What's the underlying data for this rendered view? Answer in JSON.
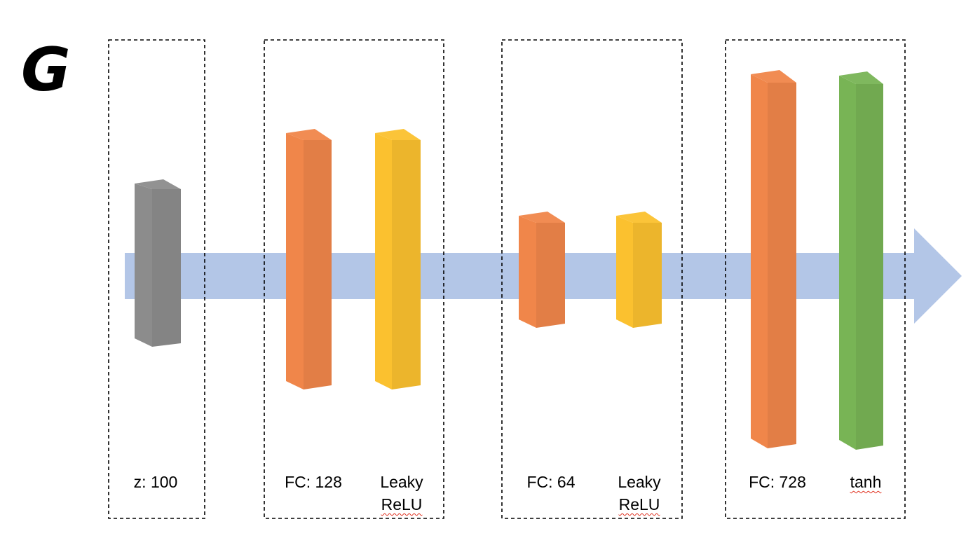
{
  "title": "G",
  "colors": {
    "arrow": "#b3c6e7",
    "input_block": "#8c8c8c",
    "fc_block": "#f0864a",
    "leaky_relu_block": "#fbc12f",
    "tanh_block": "#78b455",
    "group_border": "#000000"
  },
  "groups": [
    {
      "layers": [
        {
          "type": "input",
          "label_lines": [
            "z: 100"
          ],
          "color": "#8c8c8c"
        }
      ]
    },
    {
      "layers": [
        {
          "type": "fc",
          "label_lines": [
            "FC: 128"
          ],
          "color": "#f0864a"
        },
        {
          "type": "activation",
          "label_lines": [
            "Leaky",
            "ReLU"
          ],
          "color": "#fbc12f"
        }
      ]
    },
    {
      "layers": [
        {
          "type": "fc",
          "label_lines": [
            "FC: 64"
          ],
          "color": "#f0864a"
        },
        {
          "type": "activation",
          "label_lines": [
            "Leaky",
            "ReLU"
          ],
          "color": "#fbc12f"
        }
      ]
    },
    {
      "layers": [
        {
          "type": "fc",
          "label_lines": [
            "FC: 728"
          ],
          "color": "#f0864a"
        },
        {
          "type": "activation",
          "label_lines": [
            "tanh"
          ],
          "color": "#78b455"
        }
      ]
    }
  ]
}
